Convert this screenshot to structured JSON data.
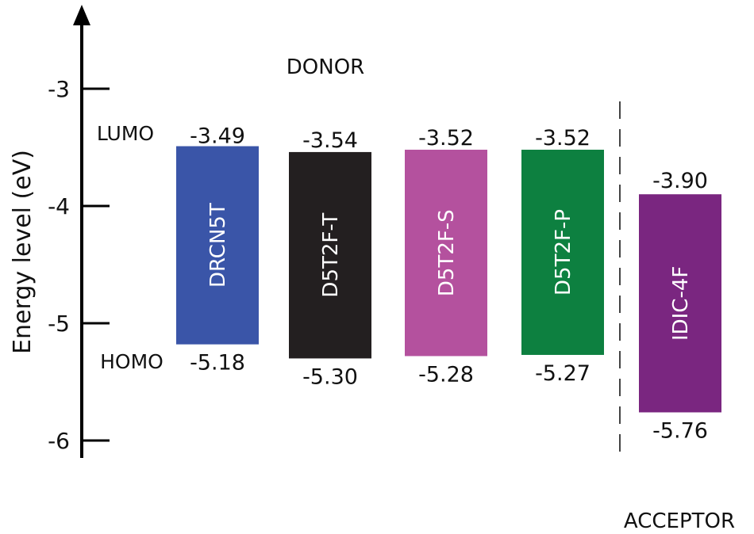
{
  "chart_data": {
    "type": "bar",
    "ylabel": "Energy level (eV)",
    "yticks": [
      -3,
      -4,
      -5,
      -6
    ],
    "ylim": [
      -6.15,
      -2.35
    ],
    "group_labels": {
      "donor": "DONOR",
      "acceptor": "ACCEPTOR"
    },
    "level_labels": {
      "lumo": "LUMO",
      "homo": "HOMO"
    },
    "categories": [
      "DRCN5T",
      "D5T2F-T",
      "D5T2F-S",
      "D5T2F-P",
      "IDIC-4F"
    ],
    "series": [
      {
        "lumo": -3.49,
        "homo": -5.18,
        "lumo_label": "-3.49",
        "homo_label": "-5.18",
        "group": "donor"
      },
      {
        "lumo": -3.54,
        "homo": -5.3,
        "lumo_label": "-3.54",
        "homo_label": "-5.30",
        "group": "donor"
      },
      {
        "lumo": -3.52,
        "homo": -5.28,
        "lumo_label": "-3.52",
        "homo_label": "-5.28",
        "group": "donor"
      },
      {
        "lumo": -3.52,
        "homo": -5.27,
        "lumo_label": "-3.52",
        "homo_label": "-5.27",
        "group": "donor"
      },
      {
        "lumo": -3.9,
        "homo": -5.76,
        "lumo_label": "-3.90",
        "homo_label": "-5.76",
        "group": "acceptor"
      }
    ],
    "colors": [
      "#3a55a8",
      "#231f20",
      "#b4519e",
      "#0d8040",
      "#7a2680"
    ],
    "label_text_colors": [
      "#ffffff",
      "#ffffff",
      "#ffffff",
      "#ffffff",
      "#ffffff"
    ]
  }
}
